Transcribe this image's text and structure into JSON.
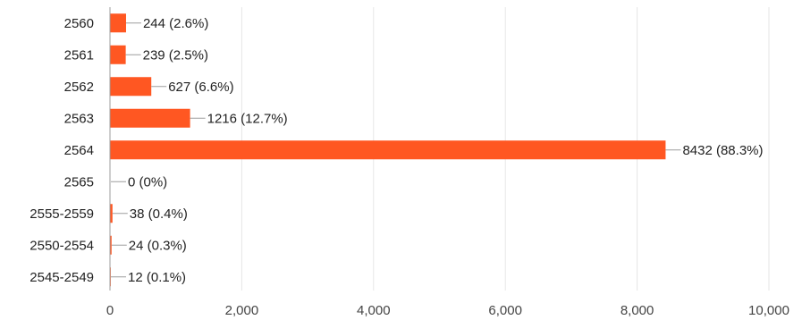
{
  "chart_data": {
    "type": "bar",
    "orientation": "horizontal",
    "categories": [
      "2560",
      "2561",
      "2562",
      "2563",
      "2564",
      "2565",
      "2555-2559",
      "2550-2554",
      "2545-2549"
    ],
    "values": [
      244,
      239,
      627,
      1216,
      8432,
      0,
      38,
      24,
      12
    ],
    "value_labels": [
      "244 (2.6%)",
      "239 (2.5%)",
      "627 (6.6%)",
      "1216 (12.7%)",
      "8432 (88.3%)",
      "0 (0%)",
      "38 (0.4%)",
      "24 (0.3%)",
      "12 (0.1%)"
    ],
    "xticks": [
      "0",
      "2,000",
      "4,000",
      "6,000",
      "8,000",
      "10,000"
    ],
    "xtick_values": [
      0,
      2000,
      4000,
      6000,
      8000,
      10000
    ],
    "xlim": [
      0,
      10000
    ],
    "grid": true,
    "title": "",
    "xlabel": "",
    "ylabel": ""
  },
  "colors": {
    "bar": "#FF5722",
    "grid": "#e6e6e6",
    "axis": "#9e9e9e",
    "leader": "#9e9e9e"
  }
}
